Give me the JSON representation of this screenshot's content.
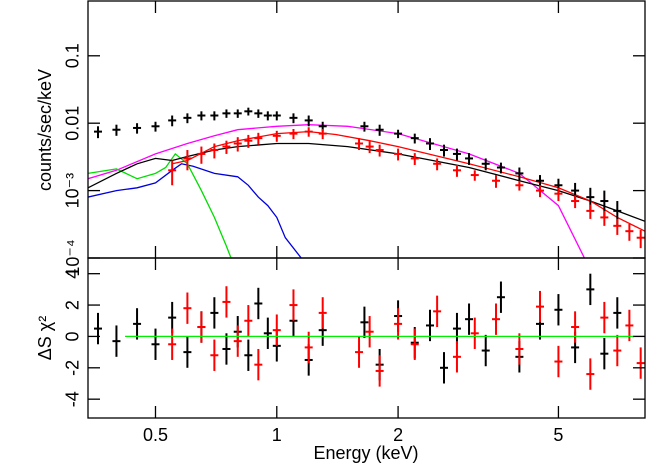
{
  "chart_data": [
    {
      "type": "spectrum",
      "ylabel": "counts/sec/keV",
      "xlog": true,
      "ylog": true,
      "xlim": [
        0.34,
        8.2
      ],
      "ylim": [
        0.0001,
        0.65
      ],
      "xticks": [
        0.5,
        1,
        2,
        5
      ],
      "show_xticklabels": false,
      "yticks": [
        0.1,
        0.01,
        {
          "value": 0.001,
          "label": "10⁻³"
        },
        {
          "value": 0.0001,
          "label": "10⁻⁴"
        }
      ],
      "series": [
        {
          "kind": "line",
          "color": "#ff00ff",
          "x": [
            0.34,
            0.4,
            0.5,
            0.6,
            0.7,
            0.8,
            1.0,
            1.2,
            1.5,
            2.0,
            3.0,
            4.0,
            5.0,
            5.8
          ],
          "values": [
            0.0015,
            0.002,
            0.0035,
            0.005,
            0.0065,
            0.008,
            0.009,
            0.0095,
            0.009,
            0.007,
            0.0035,
            0.0018,
            0.0006,
            0.0001
          ]
        },
        {
          "kind": "line",
          "color": "#0000dd",
          "x": [
            0.34,
            0.4,
            0.45,
            0.5,
            0.55,
            0.58,
            0.62,
            0.7,
            0.8,
            0.85,
            0.9,
            0.95,
            1.0,
            1.05,
            1.15
          ],
          "values": [
            0.0008,
            0.001,
            0.0011,
            0.0013,
            0.002,
            0.0025,
            0.0023,
            0.0018,
            0.0016,
            0.0012,
            0.0008,
            0.0006,
            0.0004,
            0.0002,
            0.0001
          ]
        },
        {
          "kind": "line",
          "color": "#00dd00",
          "x": [
            0.34,
            0.4,
            0.45,
            0.5,
            0.53,
            0.56,
            0.6,
            0.65,
            0.7,
            0.75,
            0.77
          ],
          "values": [
            0.0018,
            0.0021,
            0.0015,
            0.0018,
            0.0022,
            0.0035,
            0.0025,
            0.001,
            0.0004,
            0.00015,
            0.0001
          ]
        },
        {
          "kind": "line",
          "color": "#000000",
          "x": [
            0.34,
            0.4,
            0.45,
            0.5,
            0.55,
            0.6,
            0.7,
            0.8,
            1.0,
            1.2,
            1.5,
            2.0,
            3.0,
            4.0,
            5.0,
            6.0,
            7.0,
            8.2
          ],
          "values": [
            0.0011,
            0.0018,
            0.0025,
            0.003,
            0.0028,
            0.0032,
            0.004,
            0.0045,
            0.005,
            0.005,
            0.0045,
            0.0035,
            0.0022,
            0.0014,
            0.001,
            0.0007,
            0.0005,
            0.00035
          ]
        },
        {
          "kind": "line",
          "color": "#ff0000",
          "x": [
            0.55,
            0.6,
            0.7,
            0.8,
            1.0,
            1.2,
            1.4,
            1.7,
            2.0,
            3.0,
            4.0,
            5.0,
            6.0,
            7.0,
            8.2
          ],
          "values": [
            0.0025,
            0.0028,
            0.0045,
            0.0055,
            0.007,
            0.0075,
            0.0068,
            0.0055,
            0.0045,
            0.0025,
            0.0016,
            0.0011,
            0.0007,
            0.0004,
            0.00025
          ]
        },
        {
          "kind": "points",
          "color": "#000000",
          "x": [
            0.36,
            0.4,
            0.45,
            0.5,
            0.55,
            0.6,
            0.65,
            0.7,
            0.75,
            0.8,
            0.85,
            0.9,
            0.95,
            1.0,
            1.1,
            1.2,
            1.3,
            1.65,
            1.8,
            2.0,
            2.2,
            2.4,
            2.6,
            2.8,
            3.0,
            3.3,
            3.6,
            4.0,
            4.5,
            5.0,
            5.5,
            6.0,
            6.5,
            7.0
          ],
          "values": [
            0.0075,
            0.008,
            0.0085,
            0.009,
            0.011,
            0.012,
            0.013,
            0.013,
            0.014,
            0.014,
            0.015,
            0.014,
            0.013,
            0.013,
            0.012,
            0.011,
            0.009,
            0.009,
            0.008,
            0.007,
            0.006,
            0.005,
            0.004,
            0.0035,
            0.003,
            0.0025,
            0.0022,
            0.0018,
            0.0014,
            0.0012,
            0.001,
            0.0008,
            0.0007,
            0.0005
          ],
          "errors": [
            0.0015,
            0.0015,
            0.0015,
            0.0015,
            0.002,
            0.002,
            0.002,
            0.002,
            0.002,
            0.002,
            0.002,
            0.002,
            0.002,
            0.002,
            0.002,
            0.002,
            0.0015,
            0.0015,
            0.0015,
            0.001,
            0.001,
            0.001,
            0.0008,
            0.0007,
            0.0006,
            0.0005,
            0.0004,
            0.0004,
            0.0003,
            0.0003,
            0.0003,
            0.0003,
            0.0003,
            0.0002
          ]
        },
        {
          "kind": "points",
          "color": "#ff0000",
          "x": [
            0.55,
            0.6,
            0.65,
            0.7,
            0.75,
            0.8,
            0.85,
            0.9,
            1.0,
            1.1,
            1.2,
            1.3,
            1.6,
            1.7,
            1.8,
            2.0,
            2.2,
            2.5,
            2.8,
            3.1,
            3.5,
            4.0,
            4.5,
            5.0,
            5.5,
            6.0,
            6.5,
            7.0,
            7.5,
            8.0
          ],
          "values": [
            0.002,
            0.003,
            0.0035,
            0.004,
            0.0045,
            0.005,
            0.0055,
            0.006,
            0.0065,
            0.007,
            0.0075,
            0.007,
            0.005,
            0.0045,
            0.004,
            0.0035,
            0.003,
            0.0025,
            0.002,
            0.0017,
            0.0014,
            0.0012,
            0.001,
            0.0009,
            0.0007,
            0.0005,
            0.0004,
            0.0003,
            0.00025,
            0.0002
          ],
          "errors": [
            0.0008,
            0.001,
            0.001,
            0.001,
            0.001,
            0.0012,
            0.0012,
            0.0012,
            0.0012,
            0.0012,
            0.0012,
            0.0012,
            0.001,
            0.0009,
            0.0008,
            0.0007,
            0.0006,
            0.0005,
            0.0004,
            0.0003,
            0.0003,
            0.0002,
            0.0002,
            0.0002,
            0.00015,
            0.00012,
            0.0001,
            8e-05,
            7e-05,
            6e-05
          ]
        }
      ]
    },
    {
      "type": "residuals",
      "ylabel": "ΔS χ²",
      "xlabel": "Energy (keV)",
      "xlog": true,
      "ylog": false,
      "xlim": [
        0.34,
        8.2
      ],
      "ylim": [
        -5.2,
        5
      ],
      "xticks": [
        0.5,
        1,
        2,
        5
      ],
      "show_xticklabels": true,
      "yticks": [
        -4,
        -2,
        0,
        2,
        4
      ],
      "series": [
        {
          "kind": "points",
          "color": "#000000",
          "x": [
            0.36,
            0.4,
            0.45,
            0.5,
            0.55,
            0.6,
            0.65,
            0.7,
            0.75,
            0.8,
            0.85,
            0.9,
            0.95,
            1.0,
            1.1,
            1.2,
            1.3,
            1.65,
            1.8,
            2.0,
            2.2,
            2.4,
            2.6,
            2.8,
            3.0,
            3.3,
            3.6,
            4.0,
            4.5,
            5.0,
            5.5,
            6.0,
            6.5,
            7.0
          ],
          "values": [
            0.5,
            -0.3,
            0.8,
            -0.5,
            1.2,
            -1.0,
            0.6,
            1.5,
            -0.8,
            0.3,
            -1.2,
            2.1,
            0.2,
            -0.6,
            1.0,
            -1.5,
            0.4,
            0.9,
            -1.8,
            1.3,
            -0.4,
            0.7,
            -2.0,
            0.5,
            1.1,
            -0.9,
            2.5,
            -1.3,
            0.8,
            1.7,
            -0.7,
            3.0,
            -1.1,
            1.5
          ],
          "errors": [
            1,
            1,
            1,
            1,
            1,
            1,
            1,
            1,
            1,
            1,
            1,
            1,
            1,
            1,
            1,
            1,
            1,
            1,
            1,
            1,
            1,
            1,
            1,
            1,
            1,
            1,
            1,
            1,
            1,
            1,
            1,
            1,
            1,
            1
          ]
        },
        {
          "kind": "points",
          "color": "#ff0000",
          "x": [
            0.55,
            0.6,
            0.65,
            0.7,
            0.75,
            0.8,
            0.85,
            0.9,
            1.0,
            1.1,
            1.2,
            1.3,
            1.6,
            1.7,
            1.8,
            2.0,
            2.2,
            2.5,
            2.8,
            3.1,
            3.5,
            4.0,
            4.5,
            5.0,
            5.5,
            6.0,
            6.5,
            7.0,
            7.5,
            8.0
          ],
          "values": [
            -0.5,
            1.8,
            0.6,
            -1.2,
            2.2,
            -0.3,
            1.0,
            -1.8,
            0.4,
            2.0,
            -0.7,
            1.5,
            -1.0,
            0.3,
            -2.2,
            0.8,
            -0.5,
            1.6,
            -1.3,
            0.2,
            1.1,
            -0.8,
            1.9,
            -1.6,
            0.6,
            -2.4,
            1.2,
            -0.9,
            0.7,
            -1.7
          ],
          "errors": [
            1,
            1,
            1,
            1,
            1,
            1,
            1,
            1,
            1,
            1,
            1,
            1,
            1,
            1,
            1,
            1,
            1,
            1,
            1,
            1,
            1,
            1,
            1,
            1,
            1,
            1,
            1,
            1,
            1,
            1
          ]
        },
        {
          "kind": "line",
          "color": "#00ee00",
          "x": [
            0.42,
            8.2
          ],
          "values": [
            0,
            0
          ]
        }
      ]
    }
  ]
}
